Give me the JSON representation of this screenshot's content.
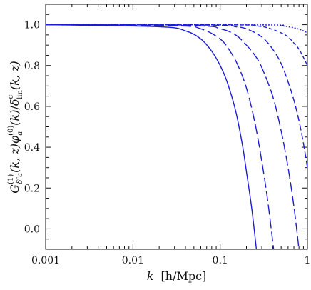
{
  "chart_data": {
    "type": "line",
    "x_scale": "log",
    "xlim": [
      0.001,
      1
    ],
    "ylim": [
      -0.1,
      1.1
    ],
    "grid": false,
    "legend": "none",
    "line_color": "#1c1cd6",
    "x_tick_labels": [
      {
        "value": 0.001,
        "label": "0.001"
      },
      {
        "value": 0.01,
        "label": "0.01"
      },
      {
        "value": 0.1,
        "label": "0.1"
      },
      {
        "value": 1,
        "label": "1"
      }
    ],
    "y_tick_labels": [
      {
        "value": 0.0,
        "label": "0.0"
      },
      {
        "value": 0.2,
        "label": "0.2"
      },
      {
        "value": 0.4,
        "label": "0.4"
      },
      {
        "value": 0.6,
        "label": "0.6"
      },
      {
        "value": 0.8,
        "label": "0.8"
      },
      {
        "value": 1.0,
        "label": "1.0"
      }
    ],
    "xlabel": {
      "var": "k",
      "unit": "[h/Mpc]"
    },
    "ylabel": {
      "G": "G",
      "G_sup": "(1)",
      "G_sub": "δ",
      "G_sub_sup": "c",
      "G_sub_tail": "a",
      "args": "(k, z)",
      "phi": "φ",
      "phi_sub": "a",
      "phi_sup": "(0)",
      "phi_args": "(k)",
      "slash": "/",
      "delta": "δ",
      "delta_sup": "c",
      "delta_sub": "lin",
      "delta_args": "(k, z)"
    },
    "series": [
      {
        "style": "solid",
        "x": [
          0.001,
          0.02,
          0.04,
          0.06,
          0.08,
          0.1,
          0.12,
          0.15,
          0.18,
          0.2,
          0.23,
          0.26
        ],
        "y": [
          1.0,
          0.99,
          0.97,
          0.93,
          0.87,
          0.8,
          0.72,
          0.58,
          0.41,
          0.28,
          0.1,
          -0.1
        ]
      },
      {
        "style": "dash-long",
        "x": [
          0.001,
          0.03,
          0.06,
          0.1,
          0.13,
          0.16,
          0.2,
          0.25,
          0.3,
          0.35,
          0.41
        ],
        "y": [
          1.0,
          0.995,
          0.98,
          0.93,
          0.87,
          0.8,
          0.69,
          0.52,
          0.33,
          0.14,
          -0.1
        ]
      },
      {
        "style": "dash-long",
        "x": [
          0.001,
          0.05,
          0.1,
          0.15,
          0.2,
          0.25,
          0.3,
          0.4,
          0.5,
          0.6,
          0.7,
          0.8
        ],
        "y": [
          1.0,
          0.995,
          0.98,
          0.95,
          0.9,
          0.85,
          0.79,
          0.65,
          0.48,
          0.3,
          0.11,
          -0.1
        ]
      },
      {
        "style": "dash-medium",
        "x": [
          0.001,
          0.08,
          0.15,
          0.2,
          0.3,
          0.4,
          0.5,
          0.6,
          0.7,
          0.8,
          0.9,
          1.0
        ],
        "y": [
          1.0,
          0.998,
          0.99,
          0.98,
          0.94,
          0.88,
          0.81,
          0.72,
          0.63,
          0.53,
          0.42,
          0.3
        ]
      },
      {
        "style": "dash-short",
        "x": [
          0.001,
          0.15,
          0.25,
          0.35,
          0.5,
          0.6,
          0.7,
          0.8,
          0.9,
          1.0
        ],
        "y": [
          1.0,
          0.999,
          0.995,
          0.985,
          0.96,
          0.94,
          0.91,
          0.88,
          0.84,
          0.8
        ]
      },
      {
        "style": "dotted",
        "x": [
          0.001,
          0.3,
          0.5,
          0.6,
          0.7,
          0.8,
          0.9,
          1.0
        ],
        "y": [
          1.0,
          0.999,
          0.995,
          0.99,
          0.985,
          0.978,
          0.97,
          0.96
        ]
      }
    ]
  }
}
